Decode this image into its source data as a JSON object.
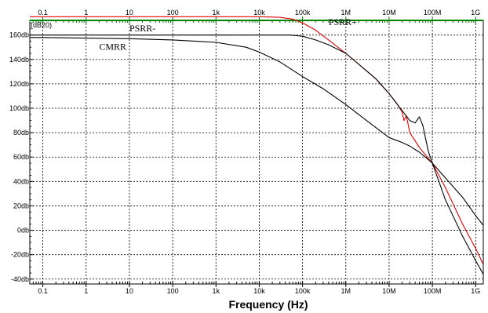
{
  "chart_data": {
    "type": "line",
    "title": "",
    "xlabel": "Frequency (Hz)",
    "ylabel": "",
    "y_unit_label": "(dB20)",
    "x_scale": "log",
    "xlim": [
      0.05,
      1500000000
    ],
    "ylim": [
      -44,
      172
    ],
    "grid": true,
    "x_ticks": [
      0.1,
      1,
      10,
      100,
      1000,
      10000,
      100000,
      1000000,
      10000000,
      100000000,
      1000000000
    ],
    "x_tick_labels": [
      "0.1",
      "1",
      "10",
      "100",
      "1k",
      "10k",
      "100k",
      "1M",
      "10M",
      "100M",
      "1G"
    ],
    "y_ticks": [
      -40,
      -20,
      0,
      20,
      40,
      60,
      80,
      100,
      120,
      140,
      160
    ],
    "y_tick_labels": [
      "-40db",
      "-20db",
      "0db",
      "20db",
      "40db",
      "60db",
      "80db",
      "100db",
      "120db",
      "140db",
      "160db"
    ],
    "annotations": [
      {
        "text": "PSRR-",
        "x": 10,
        "y": 163
      },
      {
        "text": "PSRR+",
        "x": 400000,
        "y": 168
      },
      {
        "text": "CMRR",
        "x": 2,
        "y": 148
      }
    ],
    "series": [
      {
        "name": "PSRR+",
        "color": "#e00000",
        "x": [
          0.05,
          1000,
          10000,
          30000,
          60000,
          100000,
          200000,
          400000,
          1000000,
          2000000,
          5000000,
          10000000,
          15000000,
          20000000,
          22000000,
          25000000,
          30000000,
          50000000,
          80000000,
          100000000,
          200000000,
          500000000,
          1000000000,
          1500000000
        ],
        "y": [
          175,
          175,
          175,
          174.5,
          173,
          170,
          164,
          156,
          145,
          136,
          124,
          112,
          104,
          97,
          90,
          94,
          80,
          68,
          59,
          55,
          35,
          5,
          -15,
          -28
        ]
      },
      {
        "name": "PSRR-",
        "color": "#000000",
        "x": [
          0.05,
          1000,
          10000,
          50000,
          100000,
          200000,
          400000,
          1000000,
          2000000,
          5000000,
          10000000,
          20000000,
          30000000,
          40000000,
          50000000,
          60000000,
          80000000,
          100000000,
          200000000,
          500000000,
          1000000000,
          1500000000
        ],
        "y": [
          160,
          160,
          160,
          160,
          159,
          156,
          152,
          145,
          136,
          124,
          112,
          98,
          90,
          88,
          93,
          86,
          65,
          55,
          25,
          -5,
          -25,
          -36
        ]
      },
      {
        "name": "CMRR",
        "color": "#000000",
        "x": [
          0.05,
          0.1,
          1,
          10,
          100,
          1000,
          5000,
          10000,
          30000,
          100000,
          300000,
          1000000,
          3000000,
          10000000,
          20000000,
          30000000,
          50000000,
          80000000,
          100000000,
          200000000,
          500000000,
          1000000000,
          1500000000
        ],
        "y": [
          158,
          158,
          157.5,
          157,
          156,
          154,
          150,
          146,
          138,
          126,
          116,
          103,
          90,
          76,
          72,
          69,
          64,
          58,
          55,
          43,
          27,
          12,
          4
        ]
      }
    ]
  }
}
